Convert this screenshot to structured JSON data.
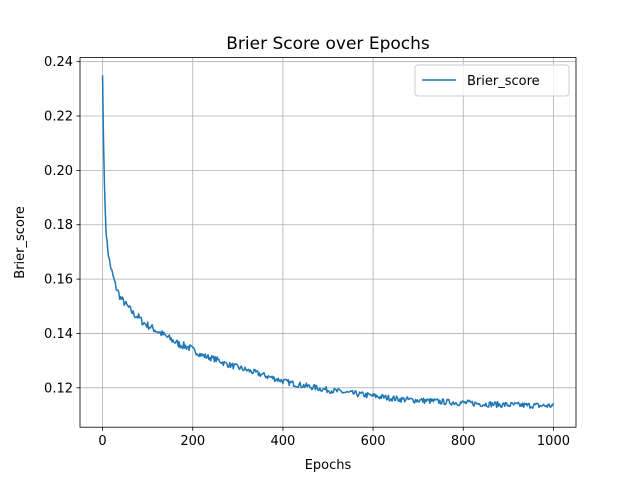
{
  "chart_data": {
    "type": "line",
    "title": "Brier Score over Epochs",
    "xlabel": "Epochs",
    "ylabel": "Brier_score",
    "xlim": [
      -50,
      1050
    ],
    "ylim": [
      0.1055,
      0.2415
    ],
    "xticks": [
      0,
      200,
      400,
      600,
      800,
      1000
    ],
    "xtick_labels": [
      "0",
      "200",
      "400",
      "600",
      "800",
      "1000"
    ],
    "yticks": [
      0.12,
      0.14,
      0.16,
      0.18,
      0.2,
      0.22,
      0.24
    ],
    "ytick_labels": [
      "0.12",
      "0.14",
      "0.16",
      "0.18",
      "0.20",
      "0.22",
      "0.24"
    ],
    "grid": true,
    "legend_position": "upper right",
    "series": [
      {
        "name": "Brier_score",
        "color": "#1f77b4",
        "x": [
          0,
          2,
          4,
          6,
          8,
          10,
          15,
          20,
          25,
          30,
          40,
          50,
          60,
          70,
          80,
          90,
          100,
          110,
          120,
          130,
          140,
          150,
          160,
          170,
          180,
          190,
          200,
          210,
          220,
          230,
          240,
          250,
          260,
          270,
          280,
          290,
          300,
          310,
          320,
          330,
          340,
          350,
          360,
          370,
          380,
          390,
          400,
          410,
          420,
          430,
          440,
          450,
          460,
          470,
          480,
          490,
          500,
          510,
          520,
          530,
          540,
          550,
          560,
          570,
          580,
          590,
          600,
          610,
          620,
          630,
          640,
          650,
          660,
          670,
          680,
          690,
          700,
          710,
          720,
          730,
          740,
          750,
          760,
          770,
          780,
          790,
          800,
          810,
          820,
          830,
          840,
          850,
          860,
          870,
          880,
          890,
          900,
          910,
          920,
          930,
          940,
          950,
          960,
          970,
          980,
          990,
          1000
        ],
        "values": [
          0.235,
          0.212,
          0.196,
          0.185,
          0.178,
          0.173,
          0.167,
          0.163,
          0.16,
          0.157,
          0.153,
          0.151,
          0.149,
          0.147,
          0.146,
          0.144,
          0.143,
          0.142,
          0.141,
          0.14,
          0.139,
          0.138,
          0.137,
          0.136,
          0.1355,
          0.135,
          0.134,
          0.133,
          0.132,
          0.1315,
          0.131,
          0.1305,
          0.13,
          0.129,
          0.1285,
          0.128,
          0.1275,
          0.127,
          0.1265,
          0.126,
          0.1255,
          0.125,
          0.1245,
          0.124,
          0.1235,
          0.123,
          0.1225,
          0.122,
          0.1217,
          0.1213,
          0.121,
          0.1207,
          0.1204,
          0.1201,
          0.1198,
          0.1195,
          0.1192,
          0.119,
          0.1187,
          0.1185,
          0.1182,
          0.118,
          0.1178,
          0.1176,
          0.1174,
          0.1172,
          0.117,
          0.1168,
          0.1166,
          0.1164,
          0.1162,
          0.116,
          0.1158,
          0.1157,
          0.1156,
          0.1155,
          0.1154,
          0.1153,
          0.1152,
          0.1151,
          0.115,
          0.1149,
          0.1148,
          0.1147,
          0.1146,
          0.1145,
          0.1145,
          0.1144,
          0.1143,
          0.1142,
          0.1141,
          0.114,
          0.114,
          0.1139,
          0.1138,
          0.1138,
          0.1137,
          0.1137,
          0.1136,
          0.1136,
          0.1135,
          0.1135,
          0.1135,
          0.1134,
          0.1134,
          0.1134,
          0.1134
        ]
      }
    ]
  }
}
